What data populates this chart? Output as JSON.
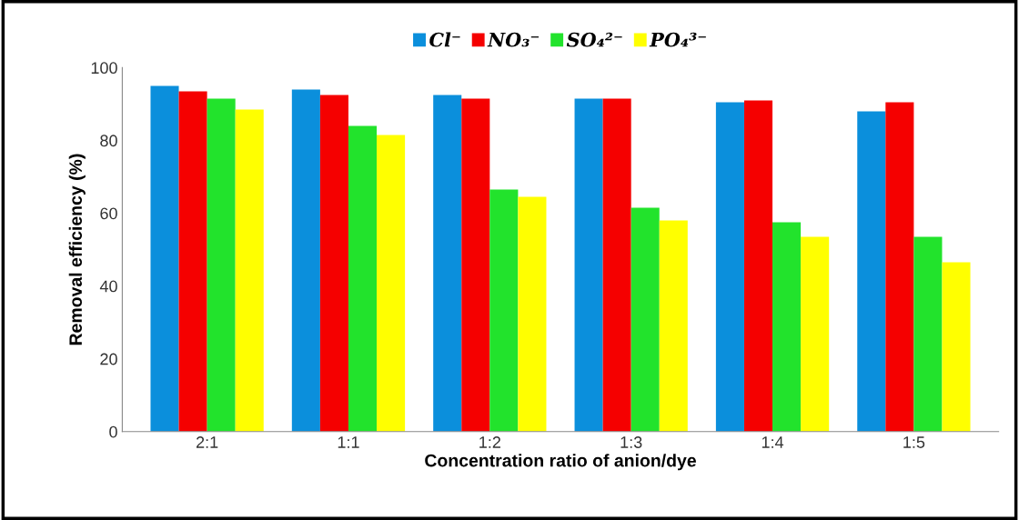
{
  "chart_data": {
    "type": "bar",
    "xlabel": "Concentration ratio of anion/dye",
    "ylabel": "Removal efficiency (%)",
    "categories": [
      "2:1",
      "1:1",
      "1:2",
      "1:3",
      "1:4",
      "1:5"
    ],
    "series": [
      {
        "name": "Cl⁻",
        "color": "#0b8fdc",
        "values": [
          95,
          94,
          92.5,
          91.5,
          90.5,
          88
        ]
      },
      {
        "name": "NO₃⁻",
        "color": "#f50000",
        "values": [
          93.5,
          92.5,
          91.5,
          91.5,
          91,
          90.5
        ]
      },
      {
        "name": "SO₄²⁻",
        "color": "#22e32c",
        "values": [
          91.5,
          84,
          66.5,
          61.5,
          57.5,
          53.5
        ]
      },
      {
        "name": "PO₄³⁻",
        "color": "#ffff00",
        "values": [
          88.5,
          81.5,
          64.5,
          58,
          53.5,
          46.5
        ]
      }
    ],
    "ylim": [
      0,
      100
    ],
    "yticks": [
      0,
      20,
      40,
      60,
      80,
      100
    ],
    "grid": false,
    "legend": "top"
  }
}
